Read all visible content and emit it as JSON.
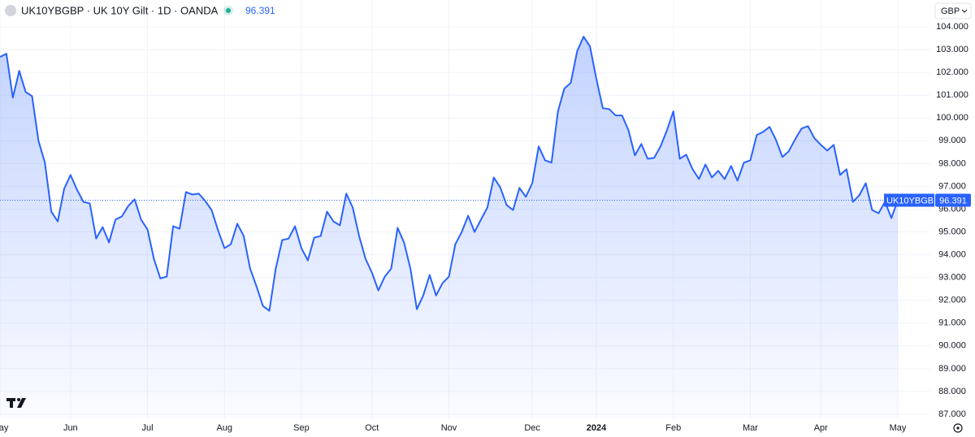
{
  "chart_data": {
    "type": "area",
    "title": "UK10YBGBP · UK 10Y Gilt · 1D · OANDA",
    "currency": "GBP",
    "last_price": 96.391,
    "categories": [
      "May",
      null,
      null,
      null,
      null,
      null,
      null,
      null,
      null,
      null,
      null,
      "Jun",
      null,
      null,
      null,
      null,
      null,
      null,
      null,
      null,
      null,
      null,
      null,
      "Jul",
      null,
      null,
      null,
      null,
      null,
      null,
      null,
      null,
      null,
      null,
      null,
      "Aug",
      null,
      null,
      null,
      null,
      null,
      null,
      null,
      null,
      null,
      null,
      null,
      "Sep",
      null,
      null,
      null,
      null,
      null,
      null,
      null,
      null,
      null,
      null,
      "Oct",
      null,
      null,
      null,
      null,
      null,
      null,
      null,
      null,
      null,
      null,
      null,
      "Nov",
      null,
      null,
      null,
      null,
      null,
      null,
      null,
      null,
      null,
      null,
      null,
      null,
      "Dec",
      null,
      null,
      null,
      null,
      null,
      null,
      null,
      null,
      null,
      "2024",
      null,
      null,
      null,
      null,
      null,
      null,
      null,
      null,
      null,
      null,
      null,
      "Feb",
      null,
      null,
      null,
      null,
      null,
      null,
      null,
      null,
      null,
      null,
      null,
      "Mar",
      null,
      null,
      null,
      null,
      null,
      null,
      null,
      null,
      null,
      null,
      "Apr",
      null,
      null,
      null,
      null,
      null,
      null,
      null,
      null,
      null,
      null,
      null,
      "May"
    ],
    "series": [
      {
        "name": "UK10YBGBP",
        "color": "#2962ff",
        "values": [
          102.68,
          102.82,
          100.89,
          102.07,
          101.14,
          100.96,
          99.0,
          98.04,
          95.89,
          95.46,
          96.89,
          97.5,
          96.86,
          96.32,
          96.25,
          94.71,
          95.21,
          94.54,
          95.54,
          95.68,
          96.14,
          96.43,
          95.54,
          95.11,
          93.82,
          92.96,
          93.04,
          95.25,
          95.14,
          96.75,
          96.64,
          96.68,
          96.36,
          95.96,
          95.07,
          94.29,
          94.46,
          95.36,
          94.82,
          93.39,
          92.61,
          91.75,
          91.54,
          93.39,
          94.64,
          94.71,
          95.25,
          94.29,
          93.75,
          94.75,
          94.82,
          95.89,
          95.46,
          95.29,
          96.68,
          96.07,
          94.82,
          93.82,
          93.21,
          92.43,
          93.04,
          93.39,
          95.18,
          94.54,
          93.39,
          91.61,
          92.21,
          93.11,
          92.21,
          92.75,
          93.04,
          94.46,
          95.0,
          95.71,
          95.0,
          95.54,
          96.07,
          97.39,
          96.96,
          96.18,
          95.96,
          96.93,
          96.54,
          97.14,
          98.75,
          98.14,
          98.04,
          100.29,
          101.29,
          101.54,
          102.93,
          103.57,
          103.14,
          101.71,
          100.43,
          100.39,
          100.11,
          100.11,
          99.46,
          98.36,
          98.86,
          98.21,
          98.25,
          98.75,
          99.46,
          100.29,
          98.21,
          98.39,
          97.75,
          97.32,
          97.96,
          97.39,
          97.68,
          97.32,
          97.89,
          97.25,
          98.04,
          98.14,
          99.25,
          99.39,
          99.61,
          99.04,
          98.29,
          98.54,
          99.07,
          99.54,
          99.64,
          99.11,
          98.82,
          98.57,
          98.82,
          97.5,
          97.75,
          96.32,
          96.61,
          97.14,
          95.96,
          95.82,
          96.32,
          95.61,
          96.391
        ]
      }
    ],
    "ylim": [
      86.8,
      104.4
    ],
    "yticks": [
      {
        "value": 87,
        "label": "87.000"
      },
      {
        "value": 88,
        "label": "88.000"
      },
      {
        "value": 89,
        "label": "89.000"
      },
      {
        "value": 90,
        "label": "90.000"
      },
      {
        "value": 91,
        "label": "91.000"
      },
      {
        "value": 92,
        "label": "92.000"
      },
      {
        "value": 93,
        "label": "93.000"
      },
      {
        "value": 94,
        "label": "94.000"
      },
      {
        "value": 95,
        "label": "95.000"
      },
      {
        "value": 96,
        "label": "96.000"
      },
      {
        "value": 97,
        "label": "97.000"
      },
      {
        "value": 98,
        "label": "98.000"
      },
      {
        "value": 99,
        "label": "99.000"
      },
      {
        "value": 100,
        "label": "100.000"
      },
      {
        "value": 101,
        "label": "101.000"
      },
      {
        "value": 102,
        "label": "102.000"
      },
      {
        "value": 103,
        "label": "103.000"
      },
      {
        "value": 104,
        "label": "104.000"
      }
    ],
    "grid": true
  }
}
